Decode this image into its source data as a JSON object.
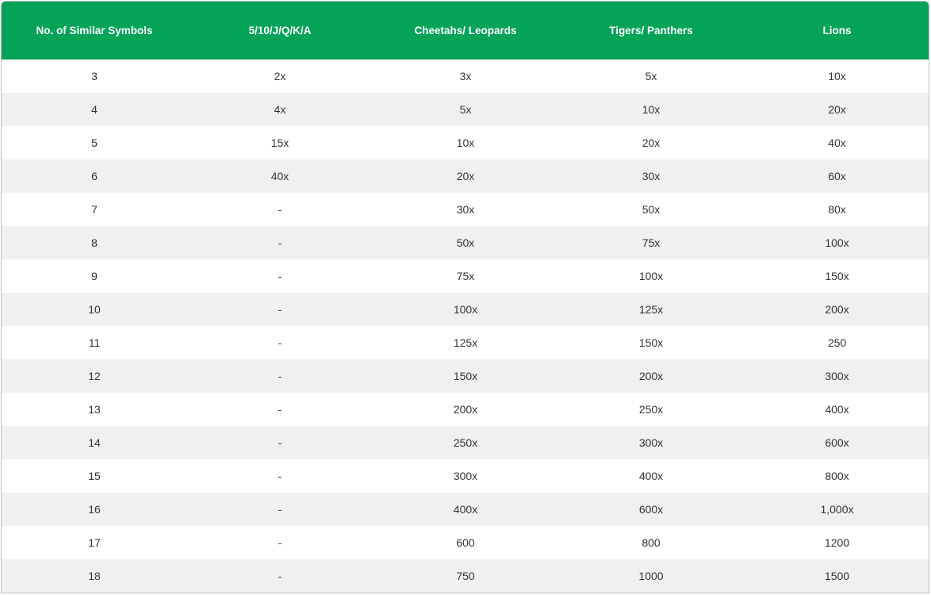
{
  "table": {
    "headers": [
      "No. of Similar Symbols",
      "5/10/J/Q/K/A",
      "Cheetahs/ Leopards",
      "Tigers/ Panthers",
      "Lions"
    ],
    "rows": [
      [
        "3",
        "2x",
        "3x",
        "5x",
        "10x"
      ],
      [
        "4",
        "4x",
        "5x",
        "10x",
        "20x"
      ],
      [
        "5",
        "15x",
        "10x",
        "20x",
        "40x"
      ],
      [
        "6",
        "40x",
        "20x",
        "30x",
        "60x"
      ],
      [
        "7",
        "-",
        "30x",
        "50x",
        "80x"
      ],
      [
        "8",
        "-",
        "50x",
        "75x",
        "100x"
      ],
      [
        "9",
        "-",
        "75x",
        "100x",
        "150x"
      ],
      [
        "10",
        "-",
        "100x",
        "125x",
        "200x"
      ],
      [
        "11",
        "-",
        "125x",
        "150x",
        "250"
      ],
      [
        "12",
        "-",
        "150x",
        "200x",
        "300x"
      ],
      [
        "13",
        "-",
        "200x",
        "250x",
        "400x"
      ],
      [
        "14",
        "-",
        "250x",
        "300x",
        "600x"
      ],
      [
        "15",
        "-",
        "300x",
        "400x",
        "800x"
      ],
      [
        "16",
        "-",
        "400x",
        "600x",
        "1,000x"
      ],
      [
        "17",
        "-",
        "600",
        "800",
        "1200"
      ],
      [
        "18",
        "-",
        "750",
        "1000",
        "1500"
      ]
    ]
  },
  "colors": {
    "header_bg": "#04a358",
    "header_text": "#ffffff",
    "row_alt_bg": "#eef0f1",
    "cell_text": "#333333"
  }
}
